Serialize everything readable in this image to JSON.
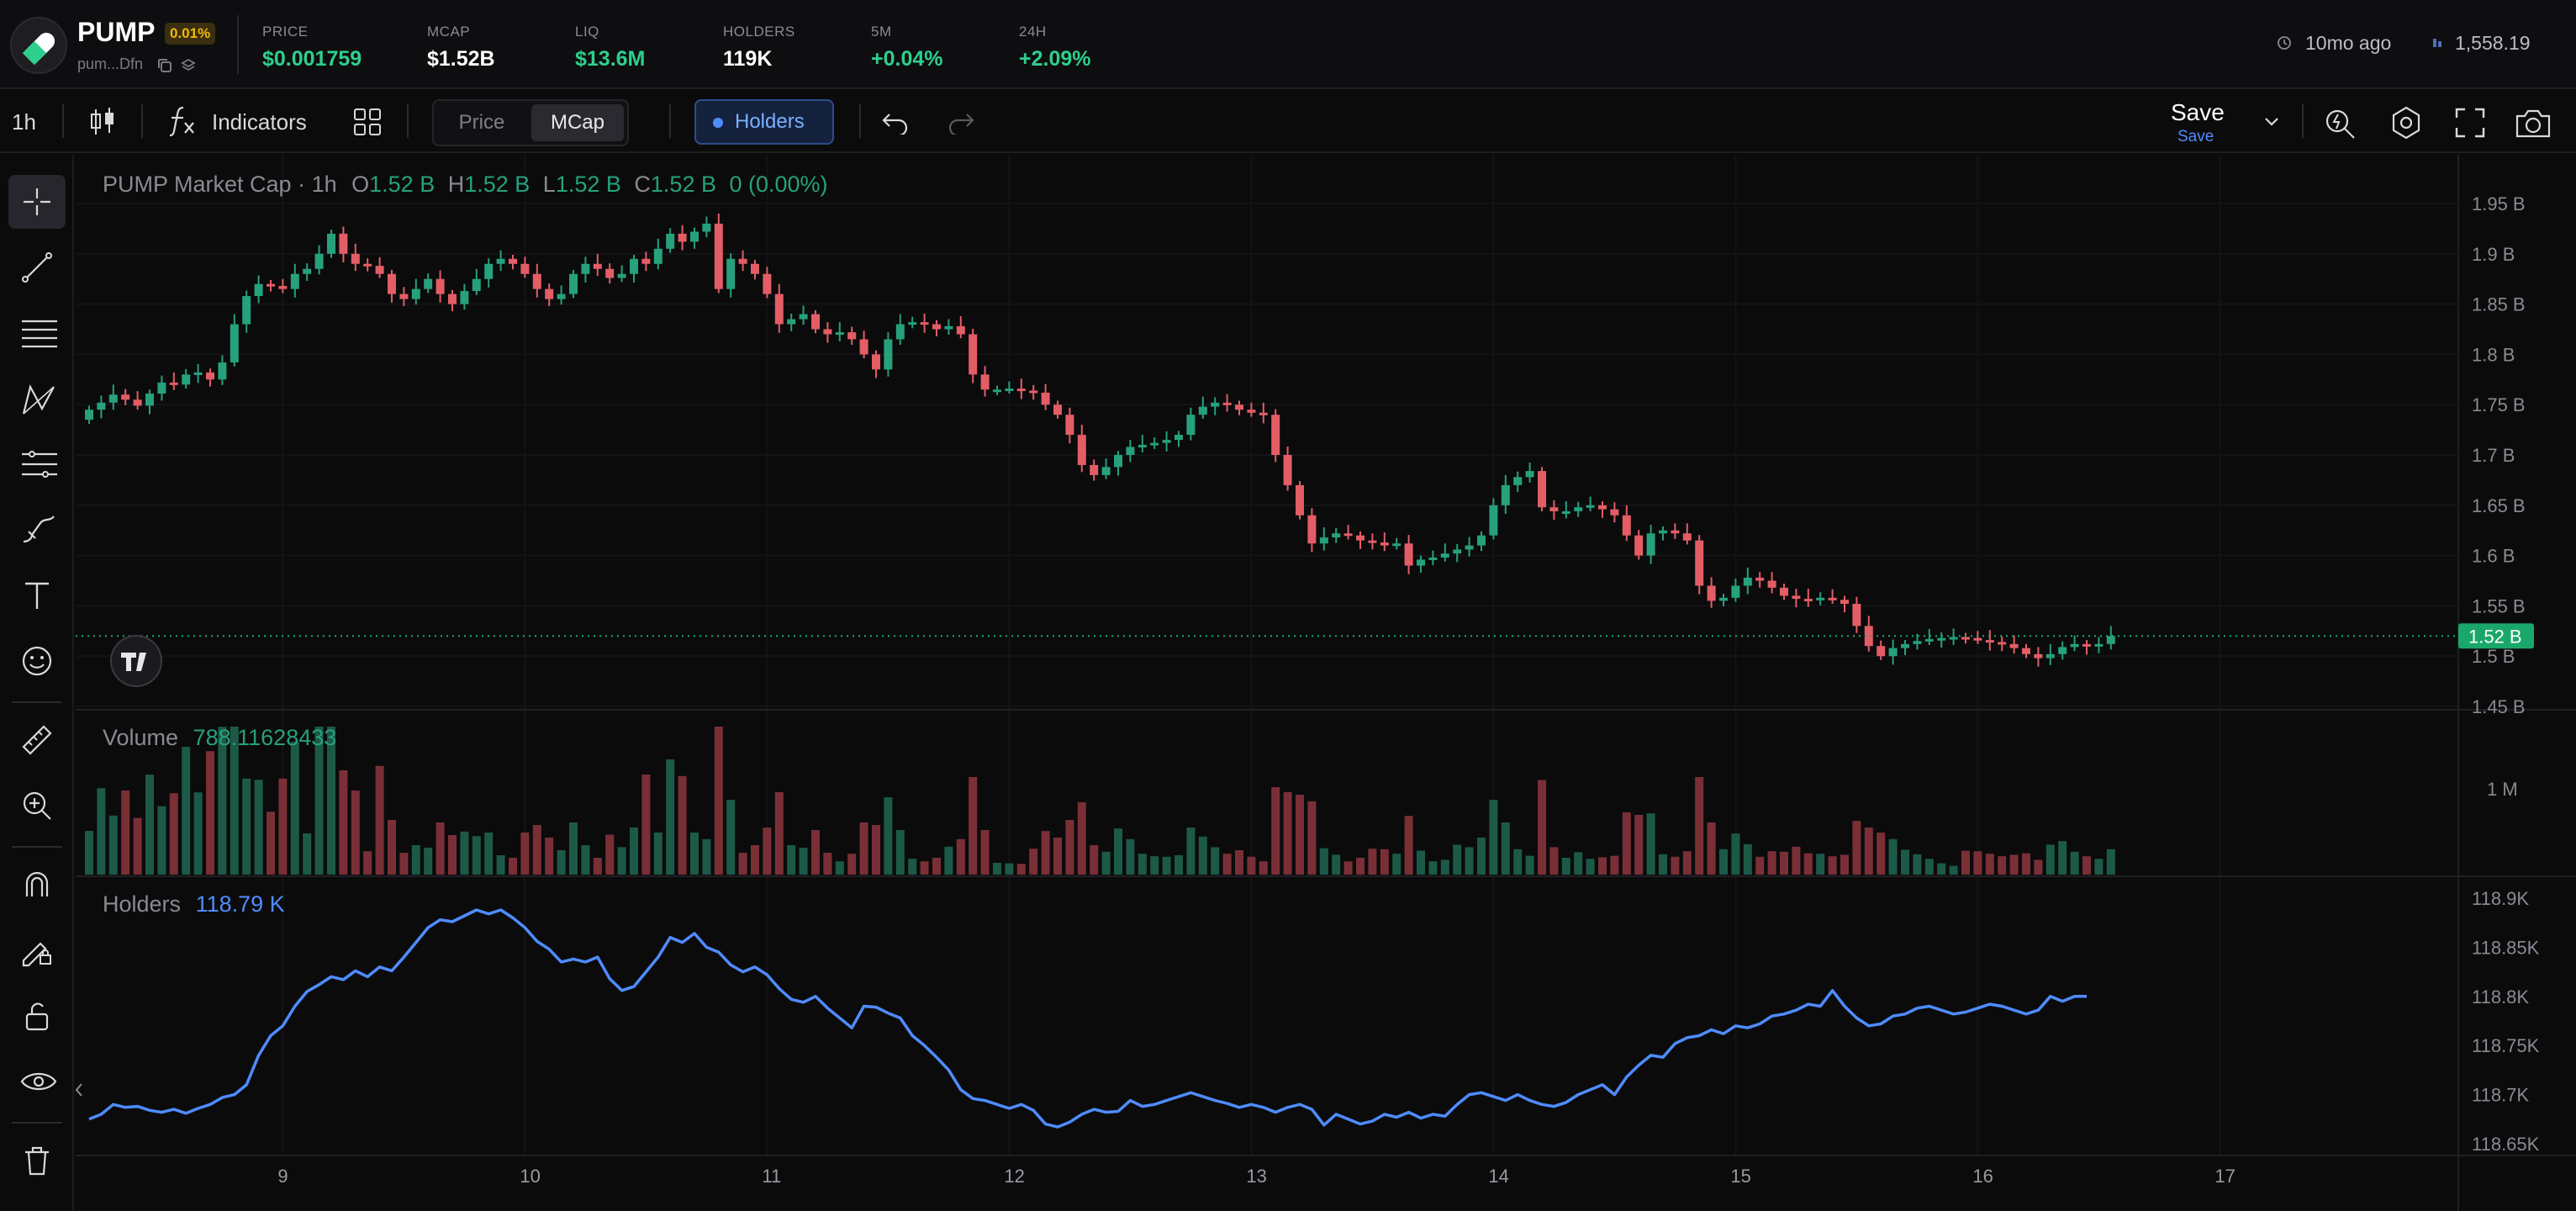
{
  "header": {
    "token_symbol": "PUMP",
    "token_badge": "0.01%",
    "token_address": "pum...Dfn",
    "stats": [
      {
        "label": "PRICE",
        "value": "$0.001759",
        "green": true
      },
      {
        "label": "MCAP",
        "value": "$1.52B",
        "green": false
      },
      {
        "label": "LIQ",
        "value": "$13.6M",
        "green": true
      },
      {
        "label": "HOLDERS",
        "value": "119K",
        "green": false
      },
      {
        "label": "5M",
        "value": "+0.04%",
        "green": true
      },
      {
        "label": "24H",
        "value": "+2.09%",
        "green": true
      }
    ],
    "updated": "10mo ago",
    "viewers": "1,558.19"
  },
  "toolbar": {
    "interval": "1h",
    "indicators_label": "Indicators",
    "price_label": "Price",
    "mcap_label": "MCap",
    "holders_label": "Holders",
    "save_label": "Save",
    "save_sub": "Save"
  },
  "colors": {
    "up": "#26a17b",
    "down": "#e35d66",
    "holders_line": "#4f8cff",
    "price_tag": "#1aa86a",
    "accent": "#4f8cff"
  },
  "icons": [
    "crosshair-icon",
    "trend-line-icon",
    "fib-icon",
    "pattern-icon",
    "measure-icon",
    "brush-icon",
    "text-icon",
    "emoji-icon",
    "ruler-icon",
    "zoom-in-icon",
    "magnet-icon",
    "lock-draw-icon",
    "unlock-icon",
    "eye-icon",
    "trash-icon"
  ],
  "chart_data": {
    "type": "candlestick",
    "main": {
      "title": "PUMP Market Cap · 1h",
      "ohlc": [
        {
          "key": "O",
          "value": "1.52 B"
        },
        {
          "key": "H",
          "value": "1.52 B"
        },
        {
          "key": "L",
          "value": "1.52 B"
        },
        {
          "key": "C",
          "value": "1.52 B"
        }
      ],
      "change": "0 (0.00%)",
      "y_ticks": [
        "1.95 B",
        "1.9 B",
        "1.85 B",
        "1.8 B",
        "1.75 B",
        "1.7 B",
        "1.65 B",
        "1.6 B",
        "1.55 B",
        "1.5 B",
        "1.45 B"
      ],
      "y_range": [
        1.45,
        1.95
      ],
      "last_value": 1.52,
      "last_label": "1.52 B",
      "close_series": [
        1.745,
        1.752,
        1.76,
        1.755,
        1.749,
        1.761,
        1.772,
        1.77,
        1.78,
        1.782,
        1.775,
        1.792,
        1.83,
        1.858,
        1.87,
        1.868,
        1.865,
        1.88,
        1.885,
        1.9,
        1.92,
        1.9,
        1.89,
        1.888,
        1.88,
        1.86,
        1.855,
        1.865,
        1.875,
        1.86,
        1.85,
        1.863,
        1.875,
        1.89,
        1.895,
        1.89,
        1.88,
        1.865,
        1.855,
        1.86,
        1.88,
        1.89,
        1.885,
        1.876,
        1.88,
        1.895,
        1.89,
        1.905,
        1.92,
        1.912,
        1.922,
        1.93,
        1.865,
        1.895,
        1.89,
        1.88,
        1.86,
        1.83,
        1.835,
        1.84,
        1.825,
        1.82,
        1.822,
        1.815,
        1.8,
        1.785,
        1.815,
        1.83,
        1.832,
        1.83,
        1.825,
        1.828,
        1.82,
        1.78,
        1.765,
        1.765,
        1.766,
        1.764,
        1.762,
        1.75,
        1.74,
        1.72,
        1.69,
        1.68,
        1.688,
        1.7,
        1.708,
        1.71,
        1.712,
        1.715,
        1.72,
        1.74,
        1.748,
        1.752,
        1.75,
        1.745,
        1.742,
        1.74,
        1.7,
        1.67,
        1.64,
        1.612,
        1.618,
        1.622,
        1.62,
        1.615,
        1.613,
        1.61,
        1.612,
        1.59,
        1.596,
        1.598,
        1.602,
        1.606,
        1.61,
        1.62,
        1.65,
        1.67,
        1.678,
        1.684,
        1.648,
        1.644,
        1.644,
        1.648,
        1.65,
        1.646,
        1.64,
        1.62,
        1.6,
        1.622,
        1.625,
        1.622,
        1.615,
        1.57,
        1.555,
        1.558,
        1.57,
        1.578,
        1.575,
        1.568,
        1.56,
        1.557,
        1.556,
        1.558,
        1.556,
        1.552,
        1.53,
        1.51,
        1.5,
        1.508,
        1.512,
        1.515,
        1.517,
        1.518,
        1.519,
        1.518,
        1.516,
        1.514,
        1.512,
        1.508,
        1.502,
        1.498,
        1.502,
        1.509,
        1.512,
        1.51,
        1.512,
        1.52
      ],
      "x_ticks": [
        "9",
        "10",
        "11",
        "12",
        "13",
        "14",
        "15",
        "16",
        "17"
      ],
      "x_tick_index": [
        16,
        36,
        56,
        76,
        96,
        116,
        136,
        156,
        176
      ]
    },
    "volume": {
      "label": "Volume",
      "value": "788.11628433",
      "y_ticks": [
        "1 M"
      ],
      "y_tick_values": [
        1000000
      ],
      "max": 2000000
    },
    "holders": {
      "label": "Holders",
      "value": "118.79 K",
      "y_ticks": [
        "118.9K",
        "118.85K",
        "118.8K",
        "118.75K",
        "118.7K",
        "118.65K"
      ],
      "y_range": [
        118.65,
        118.9
      ],
      "series": [
        118.675,
        118.68,
        118.69,
        118.687,
        118.688,
        118.684,
        118.682,
        118.685,
        118.681,
        118.686,
        118.69,
        118.697,
        118.7,
        118.71,
        118.74,
        118.76,
        118.77,
        118.79,
        118.805,
        118.812,
        118.82,
        118.817,
        118.826,
        118.82,
        118.83,
        118.826,
        118.84,
        118.855,
        118.87,
        118.878,
        118.876,
        118.882,
        118.888,
        118.884,
        118.888,
        118.88,
        118.87,
        118.856,
        118.848,
        118.835,
        118.838,
        118.835,
        118.84,
        118.818,
        118.806,
        118.81,
        118.825,
        118.84,
        118.86,
        118.855,
        118.864,
        118.85,
        118.845,
        118.832,
        118.825,
        118.83,
        118.822,
        118.808,
        118.797,
        118.794,
        118.8,
        118.788,
        118.778,
        118.768,
        118.79,
        118.789,
        118.783,
        118.778,
        118.76,
        118.75,
        118.738,
        118.725,
        118.705,
        118.696,
        118.694,
        118.69,
        118.686,
        118.69,
        118.684,
        118.67,
        118.667,
        118.672,
        118.68,
        118.685,
        118.682,
        118.683,
        118.694,
        118.688,
        118.69,
        118.694,
        118.698,
        118.702,
        118.698,
        118.694,
        118.691,
        118.687,
        118.69,
        118.687,
        118.682,
        118.687,
        118.69,
        118.685,
        118.669,
        118.68,
        118.675,
        118.67,
        118.673,
        118.68,
        118.677,
        118.682,
        118.676,
        118.68,
        118.678,
        118.69,
        118.7,
        118.702,
        118.698,
        118.694,
        118.7,
        118.694,
        118.69,
        118.688,
        118.692,
        118.7,
        118.705,
        118.71,
        118.7,
        118.718,
        118.73,
        118.74,
        118.738,
        118.752,
        118.758,
        118.76,
        118.766,
        118.762,
        118.77,
        118.768,
        118.772,
        118.78,
        118.782,
        118.786,
        118.792,
        118.79,
        118.806,
        118.79,
        118.778,
        118.77,
        118.772,
        118.78,
        118.782,
        118.788,
        118.79,
        118.786,
        118.782,
        118.784,
        118.788,
        118.792,
        118.79,
        118.786,
        118.782,
        118.786,
        118.8,
        118.795,
        118.8,
        118.8
      ]
    }
  }
}
